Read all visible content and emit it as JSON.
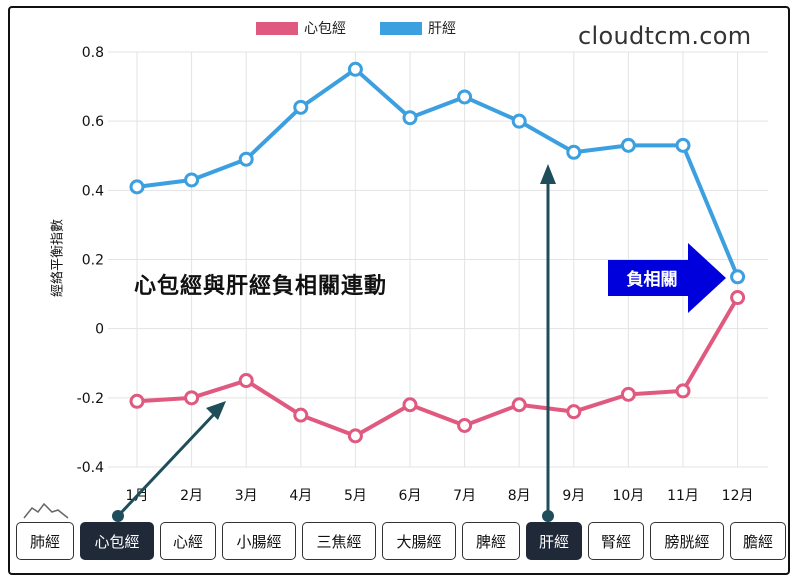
{
  "brand": "cloudtcm.com",
  "annotation": "心包經與肝經負相關連動",
  "badge": {
    "label": "負相關",
    "color": "#0000dd"
  },
  "tabs": [
    {
      "label": "肺經",
      "active": false
    },
    {
      "label": "心包經",
      "active": true
    },
    {
      "label": "心經",
      "active": false
    },
    {
      "label": "小腸經",
      "active": false
    },
    {
      "label": "三焦經",
      "active": false
    },
    {
      "label": "大腸經",
      "active": false
    },
    {
      "label": "脾經",
      "active": false
    },
    {
      "label": "肝經",
      "active": true
    },
    {
      "label": "腎經",
      "active": false
    },
    {
      "label": "膀胱經",
      "active": false
    },
    {
      "label": "膽經",
      "active": false
    }
  ],
  "chart_data": {
    "type": "line",
    "ylabel": "經絡平衡指數",
    "xlabel": "",
    "ylim": [
      -0.4,
      0.8
    ],
    "yticks": [
      "0.8",
      "0.6",
      "0.4",
      "0.2",
      "0",
      "-0.2",
      "-0.4"
    ],
    "ytick_values": [
      0.8,
      0.6,
      0.4,
      0.2,
      0,
      -0.2,
      -0.4
    ],
    "categories": [
      "1月",
      "2月",
      "3月",
      "4月",
      "5月",
      "6月",
      "7月",
      "8月",
      "9月",
      "10月",
      "11月",
      "12月"
    ],
    "grid": true,
    "legend": "top",
    "series": [
      {
        "name": "心包經",
        "color": "#e05a80",
        "values": [
          -0.21,
          -0.2,
          -0.15,
          -0.25,
          -0.31,
          -0.22,
          -0.28,
          -0.22,
          -0.24,
          -0.19,
          -0.18,
          0.09
        ]
      },
      {
        "name": "肝經",
        "color": "#3c9fe0",
        "values": [
          0.41,
          0.43,
          0.49,
          0.64,
          0.75,
          0.61,
          0.67,
          0.6,
          0.51,
          0.53,
          0.53,
          0.15
        ]
      }
    ]
  }
}
